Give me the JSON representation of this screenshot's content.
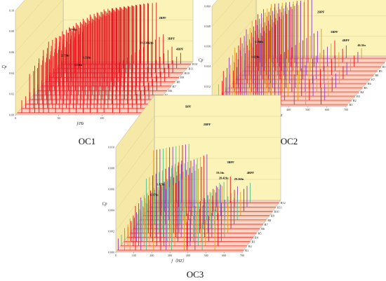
{
  "charts": [
    {
      "id": "OC1",
      "caption": "OC1",
      "xlabel": "f/Hz",
      "ylabel": "Cp",
      "xticks": [
        "0",
        "50",
        "100",
        "150"
      ],
      "yticks": [
        "0.00",
        "0.02",
        "0.04",
        "0.06",
        "0.08",
        "0.10"
      ],
      "series_labels": [
        "R1",
        "R2",
        "R3",
        "R4",
        "R5",
        "R6",
        "R7",
        "R8",
        "R9",
        "R10",
        "R11",
        "R12"
      ],
      "annotations": [
        {
          "text": "BPF",
          "x": 110,
          "y": 0.1
        },
        {
          "text": "2BPF",
          "x": 118,
          "y": 0.048
        },
        {
          "text": "3BPF",
          "x": 128,
          "y": 0.028
        },
        {
          "text": "4BPF",
          "x": 138,
          "y": 0.018
        },
        {
          "text": "19.33fn",
          "x": 96,
          "y": 0.024
        },
        {
          "text": "22fn",
          "x": 105,
          "y": 0.024
        },
        {
          "text": "5.66fn",
          "x": 14,
          "y": 0.037
        },
        {
          "text": "2.73fn",
          "x": 5,
          "y": 0.012
        },
        {
          "text": "1.33fn",
          "x": 30,
          "y": 0.01
        },
        {
          "text": "0.53fn",
          "x": 20,
          "y": 0.003
        }
      ]
    },
    {
      "id": "OC2",
      "caption": "OC2",
      "xlabel": "f/Hz",
      "ylabel": "Cp",
      "xticks": [
        "0",
        "100",
        "200",
        "300",
        "400",
        "500",
        "600",
        "700"
      ],
      "yticks": [
        "0.000",
        "0.012",
        "0.024",
        "0.036",
        "0.048",
        "0.060"
      ],
      "series_labels": [
        "R1",
        "R2",
        "R3",
        "R4",
        "R5",
        "R6",
        "R7",
        "R8",
        "R9",
        "R10",
        "R11",
        "R12"
      ],
      "annotations": [
        {
          "text": "BPF",
          "x": 300,
          "y": 0.06
        },
        {
          "text": "2BPF",
          "x": 350,
          "y": 0.03
        },
        {
          "text": "3BPF",
          "x": 420,
          "y": 0.018
        },
        {
          "text": "4BPF",
          "x": 480,
          "y": 0.013
        },
        {
          "text": "46.5fn",
          "x": 560,
          "y": 0.01
        },
        {
          "text": "2.96fn",
          "x": 25,
          "y": 0.012
        },
        {
          "text": "1.02fn",
          "x": 5,
          "y": 0.003
        }
      ]
    },
    {
      "id": "OC3",
      "caption": "OC3",
      "xlabel": "f（HZ）",
      "ylabel": "Cp",
      "xticks": [
        "0",
        "100",
        "200",
        "300",
        "400",
        "500",
        "600",
        "700"
      ],
      "yticks": [
        "0.000",
        "0.002",
        "0.004",
        "0.006",
        "0.008",
        "0.010"
      ],
      "series_labels": [
        "R1",
        "R2",
        "R3",
        "R4",
        "R5",
        "R6",
        "R7",
        "R8",
        "R9",
        "R10",
        "R11",
        "R12"
      ],
      "annotations": [
        {
          "text": "BPF",
          "x": 200,
          "y": 0.0095
        },
        {
          "text": "2BPF",
          "x": 300,
          "y": 0.0078
        },
        {
          "text": "3BPF",
          "x": 430,
          "y": 0.0042
        },
        {
          "text": "4BPF",
          "x": 540,
          "y": 0.0032
        },
        {
          "text": "19.5fn",
          "x": 370,
          "y": 0.0032
        },
        {
          "text": "20.42fn",
          "x": 385,
          "y": 0.0027
        },
        {
          "text": "29.26fn",
          "x": 470,
          "y": 0.0026
        },
        {
          "text": "1.87fn",
          "x": 40,
          "y": 0.0021
        },
        {
          "text": "0.97fn",
          "x": 5,
          "y": 0.0011
        }
      ]
    }
  ],
  "chart_data": [
    {
      "type": "line",
      "title": "OC1",
      "xlabel": "f/Hz",
      "ylabel": "Cp",
      "xlim": [
        0,
        150
      ],
      "ylim": [
        0,
        0.1
      ],
      "z_categories": [
        "R1",
        "R2",
        "R3",
        "R4",
        "R5",
        "R6",
        "R7",
        "R8",
        "R9",
        "R10",
        "R11",
        "R12"
      ],
      "peaks_x": [
        5,
        14,
        20,
        25,
        30,
        36,
        44,
        52,
        60,
        68,
        76,
        84,
        92,
        100,
        110,
        118,
        128,
        138
      ],
      "peaks_y": [
        0.012,
        0.037,
        0.045,
        0.052,
        0.06,
        0.068,
        0.072,
        0.078,
        0.082,
        0.086,
        0.09,
        0.094,
        0.096,
        0.099,
        0.1,
        0.048,
        0.028,
        0.018
      ],
      "series_colors": [
        "#e8101a",
        "#e8101a",
        "#e8101a"
      ]
    },
    {
      "type": "line",
      "title": "OC2",
      "xlabel": "f/Hz",
      "ylabel": "Cp",
      "xlim": [
        0,
        700
      ],
      "ylim": [
        0,
        0.06
      ],
      "z_categories": [
        "R1",
        "R2",
        "R3",
        "R4",
        "R5",
        "R6",
        "R7",
        "R8",
        "R9",
        "R10",
        "R11",
        "R12"
      ],
      "peaks_x": [
        5,
        25,
        50,
        80,
        110,
        140,
        170,
        200,
        230,
        260,
        300,
        350,
        420,
        480,
        560
      ],
      "peaks_y": [
        0.003,
        0.012,
        0.02,
        0.028,
        0.034,
        0.04,
        0.045,
        0.05,
        0.054,
        0.057,
        0.06,
        0.03,
        0.018,
        0.013,
        0.01
      ],
      "series_colors": [
        "#8c3fb8",
        "#e0a020",
        "#e8101a"
      ]
    },
    {
      "type": "line",
      "title": "OC3",
      "xlabel": "f（HZ）",
      "ylabel": "Cp",
      "xlim": [
        0,
        700
      ],
      "ylim": [
        0,
        0.01
      ],
      "z_categories": [
        "R1",
        "R2",
        "R3",
        "R4",
        "R5",
        "R6",
        "R7",
        "R8",
        "R9",
        "R10",
        "R11",
        "R12"
      ],
      "peaks_x": [
        5,
        40,
        70,
        100,
        130,
        160,
        200,
        240,
        270,
        300,
        370,
        385,
        430,
        470,
        540
      ],
      "peaks_y": [
        0.0011,
        0.0021,
        0.003,
        0.0042,
        0.005,
        0.0068,
        0.0095,
        0.0062,
        0.0058,
        0.0078,
        0.0032,
        0.0027,
        0.0042,
        0.0026,
        0.0032
      ],
      "series_colors": [
        "#8c3fb8",
        "#4fc08d",
        "#e0a020",
        "#e8101a"
      ]
    }
  ]
}
